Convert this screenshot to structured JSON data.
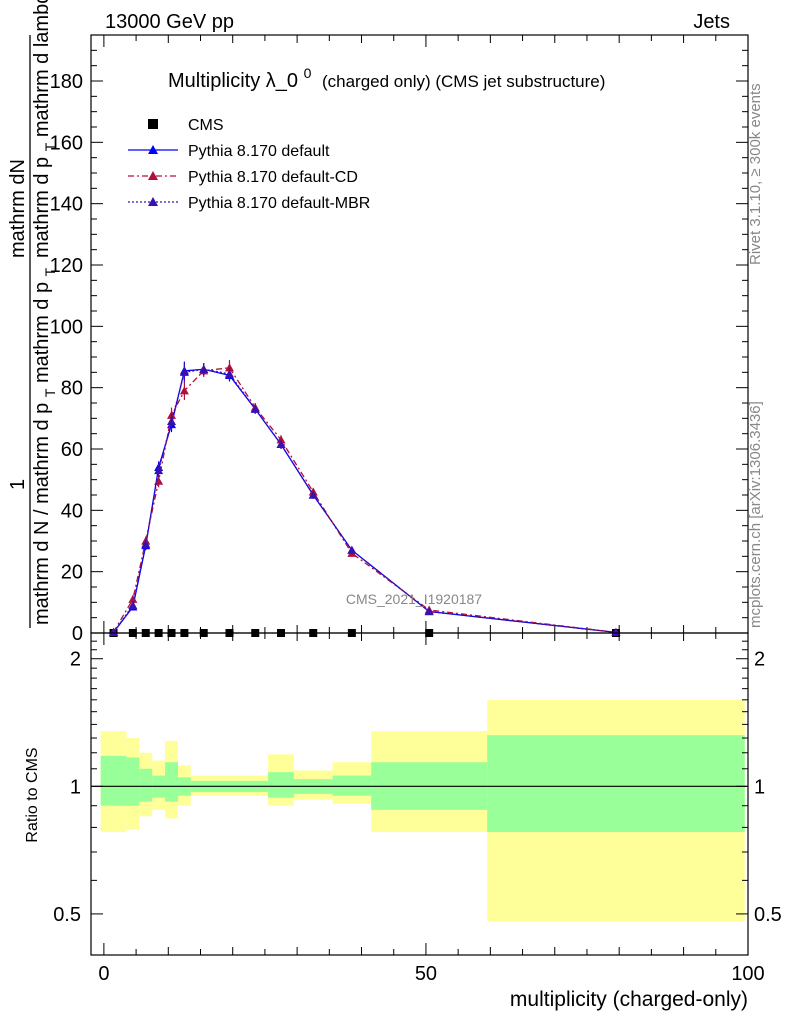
{
  "header": {
    "left": "13000 GeV pp",
    "right": "Jets"
  },
  "side_right": {
    "rivet": "Rivet 3.1.10, ≥ 300k events",
    "mcplots": "mcplots.cern.ch [arXiv:1306.3436]"
  },
  "chart_data": [
    {
      "type": "line",
      "panel": "main",
      "title": "Multiplicity λ_0",
      "title_sup": "0",
      "title_suffix": "(charged only) (CMS jet substructure)",
      "analysis_label": "CMS_2021_I1920187",
      "ylabel_numer": "mathrm dN",
      "ylabel_frac_denom": "mathrm d p",
      "ylabel_frac_denom_sub": "T",
      "ylabel_frac_denom_tail": " mathrm d lambda",
      "ylabel_prefix_num": "1",
      "ylabel_prefix_den": "mathrm d N / mathrm d p",
      "ylabel_prefix_den_sub": "T",
      "ylabel_prefix_den_tail": "mathrm d p",
      "ylabel_prefix_den_sub2": "T",
      "xlim": [
        -2,
        100
      ],
      "ylim": [
        0,
        195
      ],
      "yticks": [
        "0",
        "20",
        "40",
        "60",
        "80",
        "100",
        "120",
        "140",
        "160",
        "180"
      ],
      "legend": [
        {
          "name": "CMS",
          "marker": "square",
          "color": "#000000"
        },
        {
          "name": "Pythia 8.170 default",
          "marker": "triangle",
          "color": "#0000ff",
          "dash": "solid"
        },
        {
          "name": "Pythia 8.170 default-CD",
          "marker": "triangle",
          "color": "#b0103a",
          "dash": "dashdot"
        },
        {
          "name": "Pythia 8.170 default-MBR",
          "marker": "triangle",
          "color": "#3a10b0",
          "dash": "dotted"
        }
      ],
      "series": [
        {
          "name": "CMS",
          "x": [
            1.5,
            4.5,
            6.5,
            8.5,
            10.5,
            12.5,
            15.5,
            19.5,
            23.5,
            27.5,
            32.5,
            38.5,
            50.5,
            79.5
          ],
          "y": [
            0,
            0,
            0,
            0,
            0,
            0,
            0,
            0,
            0,
            0,
            0,
            0,
            0,
            0
          ]
        },
        {
          "name": "Pythia 8.170 default",
          "x": [
            1.5,
            4.5,
            6.5,
            8.5,
            10.5,
            12.5,
            15.5,
            19.5,
            23.5,
            27.5,
            32.5,
            38.5,
            50.5,
            79.5
          ],
          "y": [
            0.2,
            8.5,
            28.5,
            54,
            68,
            85.5,
            86,
            84,
            73,
            61.5,
            45,
            27,
            7,
            0.2
          ],
          "err": [
            0.3,
            1.0,
            1.5,
            2.0,
            2.5,
            3.0,
            2.0,
            2.0,
            1.5,
            1.5,
            1.2,
            1.0,
            0.5,
            0.1
          ]
        },
        {
          "name": "Pythia 8.170 default-CD",
          "x": [
            1.5,
            4.5,
            6.5,
            8.5,
            10.5,
            12.5,
            15.5,
            19.5,
            23.5,
            27.5,
            32.5,
            38.5,
            50.5,
            79.5
          ],
          "y": [
            0.3,
            11,
            30,
            49.5,
            71,
            79,
            85.5,
            86.5,
            73.5,
            63,
            46,
            26,
            7.5,
            0.2
          ],
          "err": [
            0.3,
            1.0,
            1.5,
            2.0,
            2.5,
            3.0,
            2.0,
            2.5,
            1.5,
            1.5,
            1.2,
            1.0,
            0.5,
            0.1
          ]
        },
        {
          "name": "Pythia 8.170 default-MBR",
          "x": [
            1.5,
            4.5,
            6.5,
            8.5,
            10.5,
            12.5,
            15.5,
            19.5,
            23.5,
            27.5,
            32.5,
            38.5,
            50.5,
            79.5
          ],
          "y": [
            0.2,
            9,
            29,
            53,
            69,
            85,
            86,
            84.5,
            73,
            61.5,
            45,
            27,
            7,
            0.2
          ],
          "err": [
            0.3,
            1.0,
            1.5,
            2.0,
            2.5,
            3.0,
            2.0,
            2.0,
            1.5,
            1.5,
            1.2,
            1.0,
            0.5,
            0.1
          ]
        }
      ]
    },
    {
      "type": "area",
      "panel": "ratio",
      "ylabel": "Ratio to CMS",
      "xlabel": "multiplicity (charged-only)",
      "xlim": [
        -2,
        100
      ],
      "ylim": [
        0.4,
        2.3
      ],
      "yscale": "log",
      "yticks": [
        "0.5",
        "1",
        "2"
      ],
      "xticks": [
        "0",
        "50",
        "100"
      ],
      "bins": [
        {
          "x0": -0.5,
          "x1": 3.5,
          "green": [
            0.9,
            1.18
          ],
          "yellow": [
            0.78,
            1.35
          ]
        },
        {
          "x0": 3.5,
          "x1": 5.5,
          "green": [
            0.9,
            1.17
          ],
          "yellow": [
            0.79,
            1.3
          ]
        },
        {
          "x0": 5.5,
          "x1": 7.5,
          "green": [
            0.92,
            1.1
          ],
          "yellow": [
            0.85,
            1.2
          ]
        },
        {
          "x0": 7.5,
          "x1": 9.5,
          "green": [
            0.94,
            1.06
          ],
          "yellow": [
            0.88,
            1.15
          ]
        },
        {
          "x0": 9.5,
          "x1": 11.5,
          "green": [
            0.92,
            1.14
          ],
          "yellow": [
            0.84,
            1.28
          ]
        },
        {
          "x0": 11.5,
          "x1": 13.5,
          "green": [
            0.95,
            1.05
          ],
          "yellow": [
            0.9,
            1.12
          ]
        },
        {
          "x0": 13.5,
          "x1": 25.5,
          "green": [
            0.97,
            1.03
          ],
          "yellow": [
            0.95,
            1.06
          ]
        },
        {
          "x0": 25.5,
          "x1": 29.5,
          "green": [
            0.94,
            1.08
          ],
          "yellow": [
            0.9,
            1.19
          ]
        },
        {
          "x0": 29.5,
          "x1": 35.5,
          "green": [
            0.96,
            1.04
          ],
          "yellow": [
            0.93,
            1.09
          ]
        },
        {
          "x0": 35.5,
          "x1": 41.5,
          "green": [
            0.95,
            1.06
          ],
          "yellow": [
            0.91,
            1.14
          ]
        },
        {
          "x0": 41.5,
          "x1": 59.5,
          "green": [
            0.88,
            1.14
          ],
          "yellow": [
            0.78,
            1.35
          ]
        },
        {
          "x0": 59.5,
          "x1": 99.5,
          "green": [
            0.78,
            1.32
          ],
          "yellow": [
            0.48,
            1.6
          ]
        }
      ]
    }
  ]
}
